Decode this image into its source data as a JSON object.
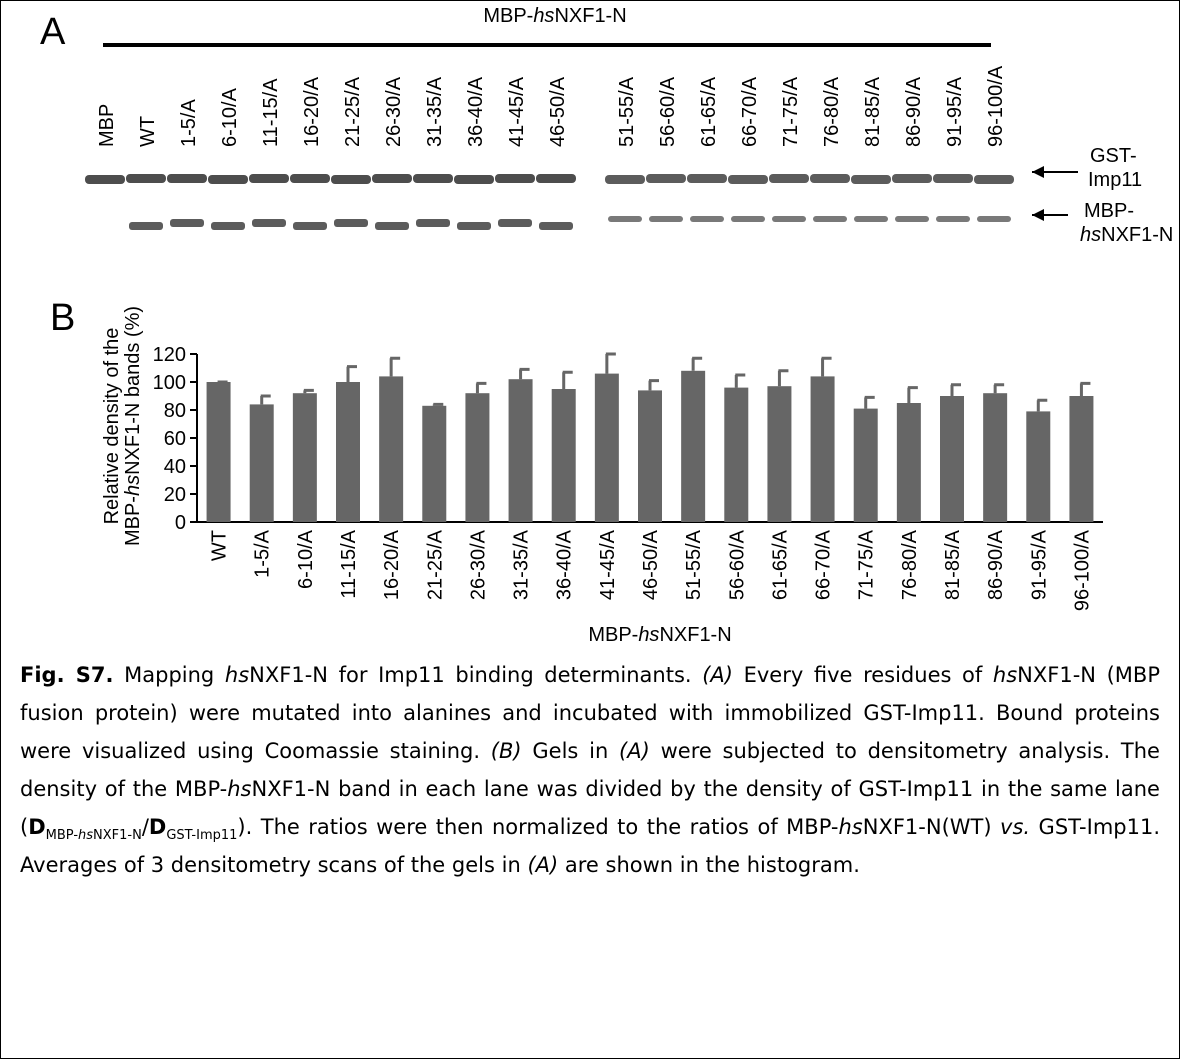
{
  "panel_a": {
    "label": "A",
    "group_label": [
      "MBP-",
      {
        "text": "hs",
        "style": "italic"
      },
      "NXF1-N"
    ],
    "lanes": [
      "MBP",
      "WT",
      "1-5/A",
      "6-10/A",
      "11-15/A",
      "16-20/A",
      "21-25/A",
      "26-30/A",
      "31-35/A",
      "36-40/A",
      "41-45/A",
      "46-50/A",
      "51-55/A",
      "56-60/A",
      "61-65/A",
      "66-70/A",
      "71-75/A",
      "76-80/A",
      "81-85/A",
      "86-90/A",
      "91-95/A",
      "96-100/A"
    ],
    "band_labels": [
      {
        "lines": [
          "GST-",
          "Imp11"
        ]
      },
      {
        "lines": [
          "MBP-",
          [
            {
              "text": "hs",
              "style": "italic"
            },
            "NXF1-N"
          ]
        ]
      }
    ]
  },
  "chart_data": {
    "type": "bar",
    "panel_label": "B",
    "categories": [
      "WT",
      "1-5/A",
      "6-10/A",
      "11-15/A",
      "16-20/A",
      "21-25/A",
      "26-30/A",
      "31-35/A",
      "36-40/A",
      "41-45/A",
      "46-50/A",
      "51-55/A",
      "56-60/A",
      "61-65/A",
      "66-70/A",
      "71-75/A",
      "76-80/A",
      "81-85/A",
      "86-90/A",
      "91-95/A",
      "96-100/A"
    ],
    "values": [
      100,
      84,
      92,
      100,
      104,
      83,
      92,
      102,
      95,
      106,
      94,
      108,
      96,
      97,
      104,
      81,
      85,
      90,
      92,
      79,
      90
    ],
    "errors": [
      0,
      6,
      2,
      11,
      13,
      1,
      7,
      7,
      12,
      14,
      7,
      9,
      9,
      11,
      13,
      8,
      11,
      8,
      6,
      8,
      9
    ],
    "color": "#666666",
    "ylim": [
      0,
      120
    ],
    "yticks": [
      0,
      20,
      40,
      60,
      80,
      100,
      120
    ],
    "xlabel": [
      "MBP-",
      {
        "text": "hs",
        "style": "italic"
      },
      "NXF1-N"
    ],
    "ylabel": [
      "Relative density of the",
      [
        "MBP-",
        {
          "text": "hs",
          "style": "italic"
        },
        "NXF1-N bands (%)"
      ]
    ]
  },
  "caption": [
    {
      "text": "Fig. S7.",
      "style": "bold"
    },
    " Mapping ",
    {
      "text": "hs",
      "style": "italic"
    },
    "NXF1-N for Imp11 binding determinants. ",
    {
      "text": "(A)",
      "style": "italic"
    },
    " Every five residues of ",
    {
      "text": "hs",
      "style": "italic"
    },
    "NXF1-N (MBP fusion protein) were mutated into alanines and incubated with immobilized GST-Imp11. Bound proteins were visualized using Coomassie staining. ",
    {
      "text": "(B)",
      "style": "italic"
    },
    " Gels in ",
    {
      "text": "(A)",
      "style": "italic"
    },
    " were subjected to densitometry analysis. The density of the MBP-",
    {
      "text": "hs",
      "style": "italic"
    },
    "NXF1-N band in each lane was divided by the density of GST-Imp11 in the same lane (",
    {
      "text": "D",
      "style": "bold"
    },
    {
      "text": "MBP-",
      "style": "sub"
    },
    {
      "text": "hs",
      "style": "sub italic"
    },
    {
      "text": "NXF1-N",
      "style": "sub"
    },
    "/",
    {
      "text": "D",
      "style": "bold"
    },
    {
      "text": "GST-Imp11",
      "style": "sub"
    },
    "). The ratios were then normalized to the ratios of MBP-",
    {
      "text": "hs",
      "style": "italic"
    },
    "NXF1-N(WT) ",
    {
      "text": "vs.",
      "style": "italic"
    },
    " GST-Imp11. Averages of 3 densitometry scans of the gels in ",
    {
      "text": "(A)",
      "style": "italic"
    },
    " are shown in the histogram."
  ]
}
